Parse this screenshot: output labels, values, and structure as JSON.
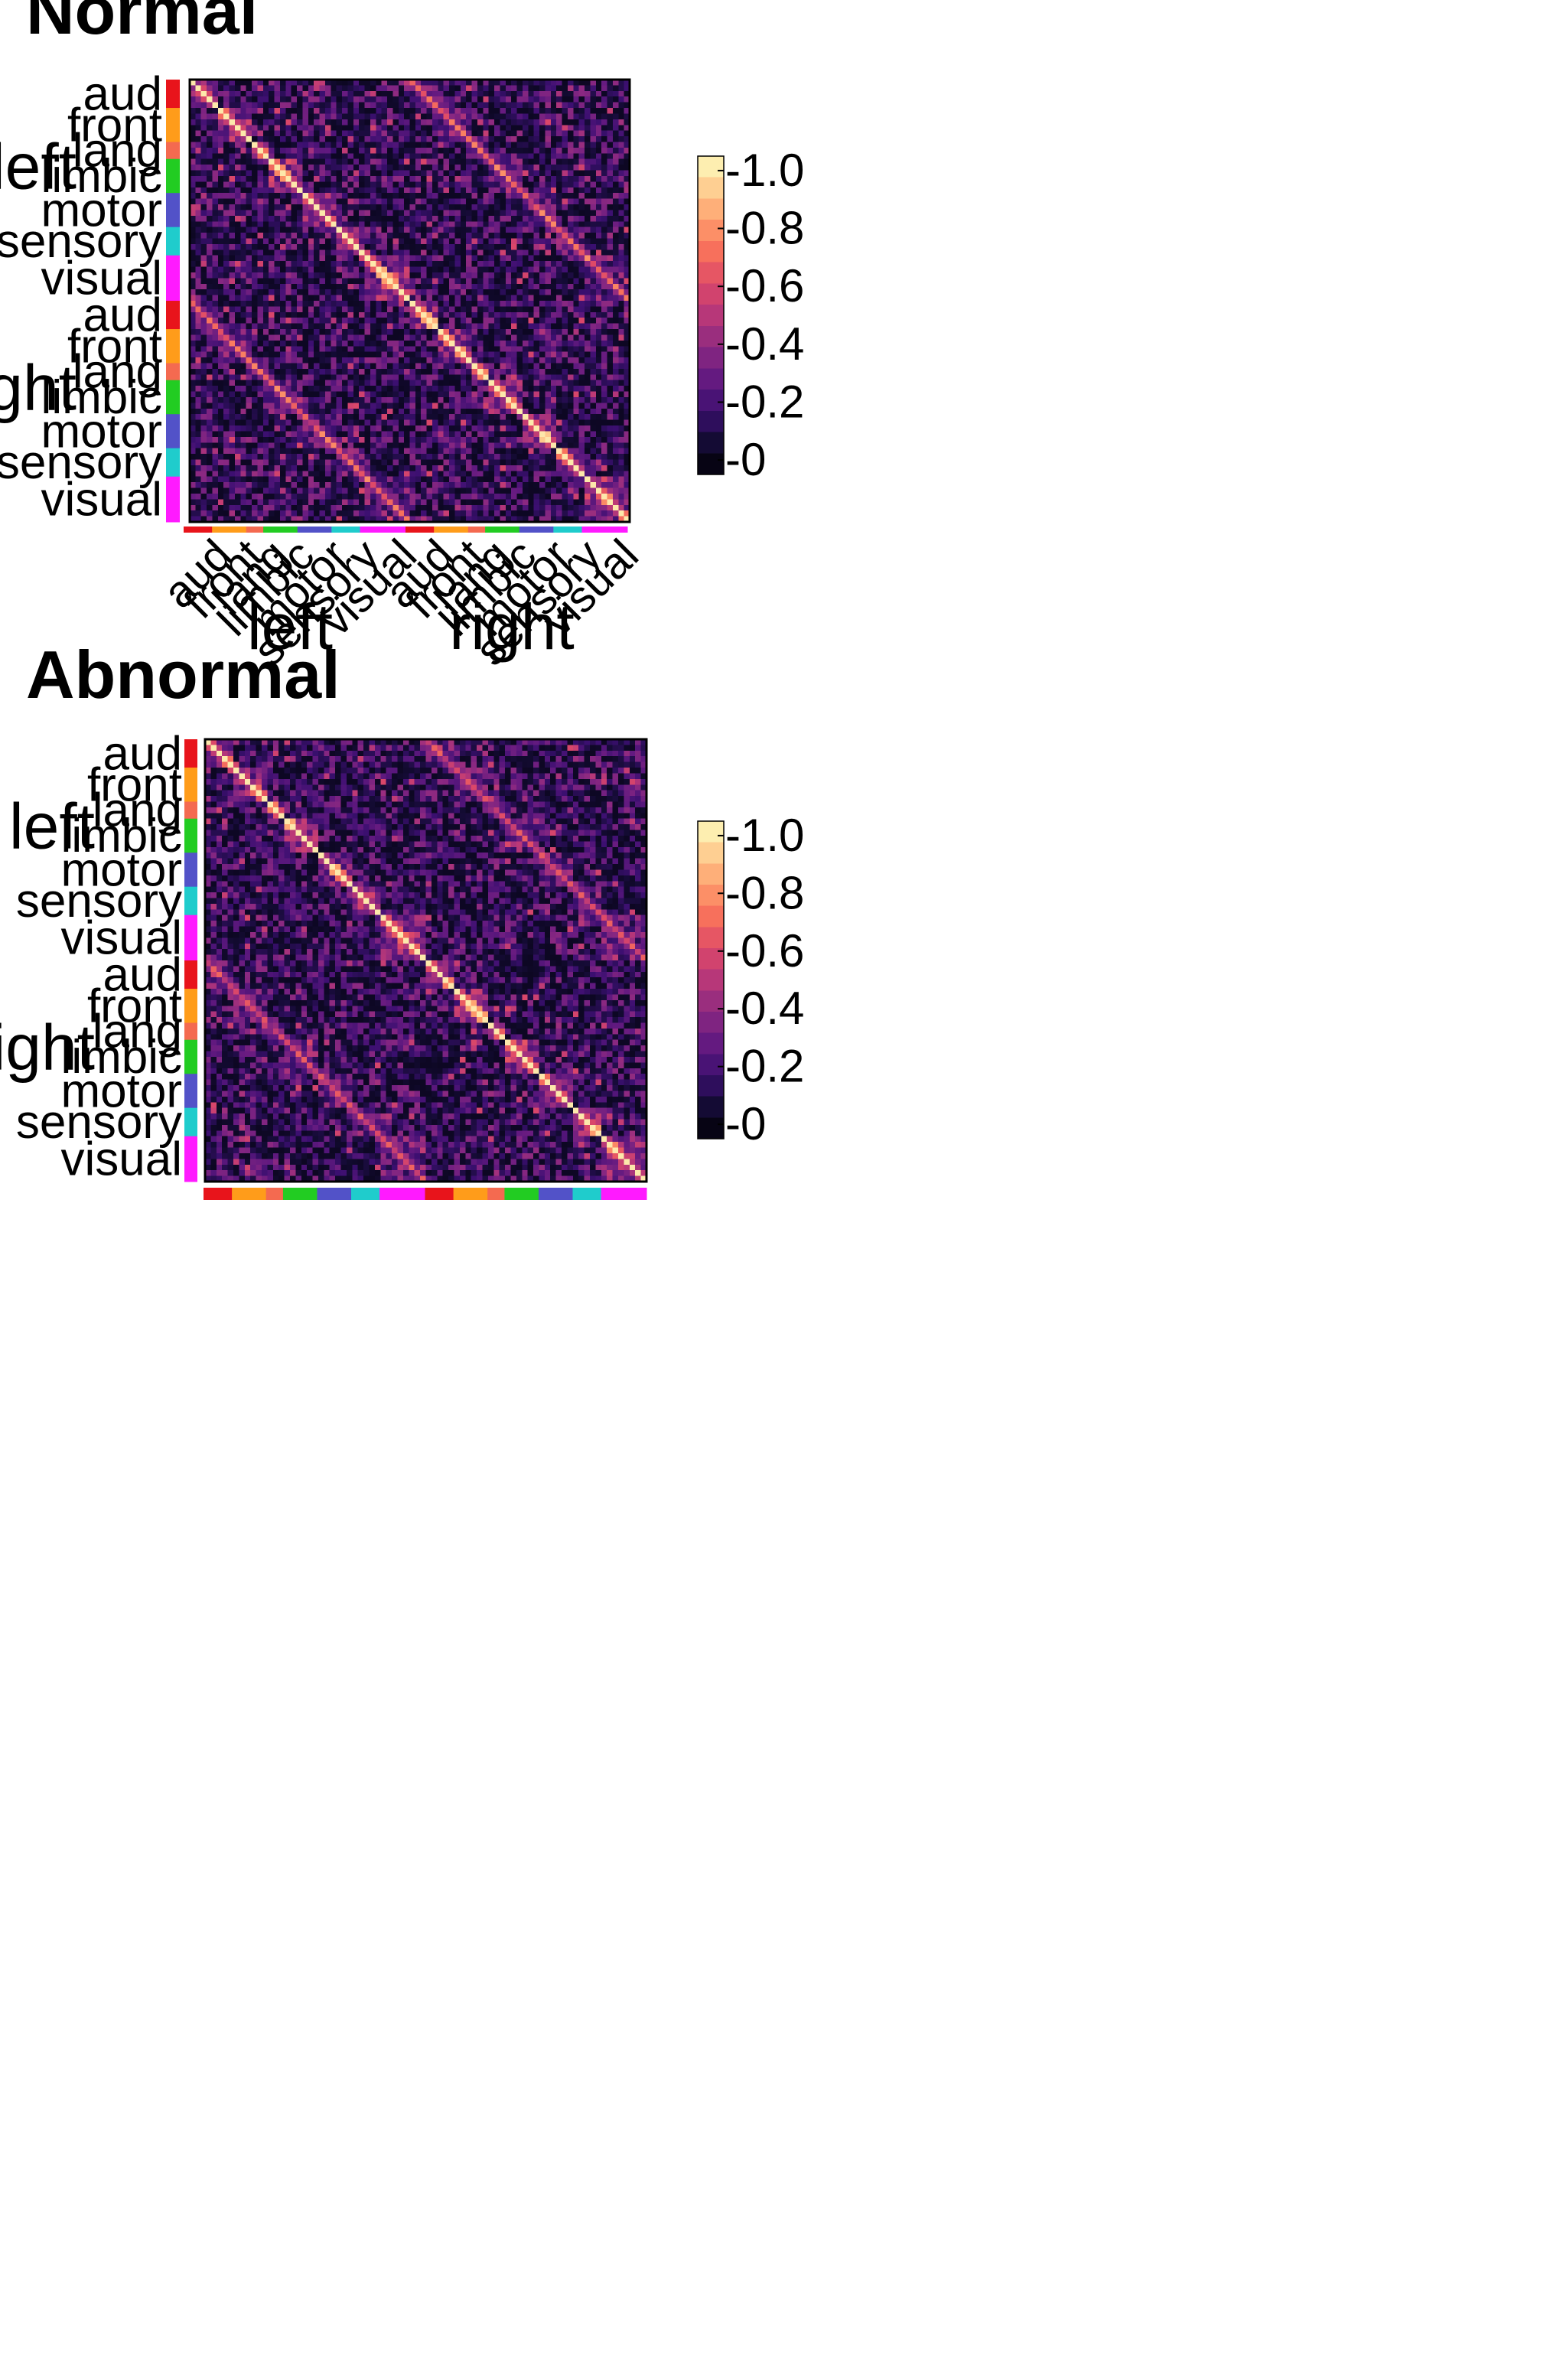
{
  "chart_data": [
    {
      "type": "heatmap",
      "title": "Normal",
      "row_groups": [
        {
          "hemisphere": "left",
          "networks": [
            "aud",
            "front",
            "lang",
            "limbic",
            "motor",
            "sensory",
            "visual"
          ]
        },
        {
          "hemisphere": "right",
          "networks": [
            "aud",
            "front",
            "lang",
            "limbic",
            "motor",
            "sensory",
            "visual"
          ]
        }
      ],
      "column_groups": [
        {
          "hemisphere": "left",
          "networks": [
            "aud",
            "front",
            "lang",
            "limbic",
            "motor",
            "sensory",
            "visual"
          ]
        },
        {
          "hemisphere": "right",
          "networks": [
            "aud",
            "front",
            "lang",
            "limbic",
            "motor",
            "sensory",
            "visual"
          ]
        }
      ],
      "show_column_labels": true,
      "network_region_counts": [
        5,
        6,
        3,
        6,
        6,
        5,
        8
      ],
      "values_description": "Correlation matrix; diagonal = 1.0, homologous left-right regions ~0.6-0.8, most off-diagonal values 0-0.4",
      "diagonal_value": 1.0,
      "homologous_value": 0.7,
      "colorbar": {
        "min": -0.05,
        "max": 1.05,
        "ticks": [
          1.0,
          0.8,
          0.6,
          0.4,
          0.2,
          0
        ],
        "tick_labels": [
          "1.0",
          "0.8",
          "0.6",
          "0.4",
          "0.2",
          "0"
        ]
      },
      "seed": 11
    },
    {
      "type": "heatmap",
      "title": "Abnormal",
      "row_groups": [
        {
          "hemisphere": "left",
          "networks": [
            "aud",
            "front",
            "lang",
            "limbic",
            "motor",
            "sensory",
            "visual"
          ]
        },
        {
          "hemisphere": "right",
          "networks": [
            "aud",
            "front",
            "lang",
            "limbic",
            "motor",
            "sensory",
            "visual"
          ]
        }
      ],
      "show_column_labels": false,
      "network_region_counts": [
        5,
        6,
        3,
        6,
        6,
        5,
        8
      ],
      "values_description": "Correlation matrix; diagonal = 1.0, homologous left-right regions ~0.5-0.7, weaker within-network structure",
      "diagonal_value": 1.0,
      "homologous_value": 0.6,
      "colorbar": {
        "min": -0.05,
        "max": 1.05,
        "ticks": [
          1.0,
          0.8,
          0.6,
          0.4,
          0.2,
          0
        ],
        "tick_labels": [
          "1.0",
          "0.8",
          "0.6",
          "0.4",
          "0.2",
          "0"
        ]
      },
      "seed": 29
    }
  ],
  "network_colors": {
    "aud": "#e8141b",
    "front": "#ff9c1a",
    "lang": "#f46a50",
    "limbic": "#22cc22",
    "motor": "#5252c8",
    "sensory": "#1fcccc",
    "visual": "#ff1aff"
  },
  "colormap_stops": [
    "#000004",
    "#140b34",
    "#3b0f70",
    "#641a80",
    "#8c2981",
    "#b73779",
    "#de4968",
    "#f7705c",
    "#fe9f6d",
    "#fecf92",
    "#fcfdbf"
  ]
}
